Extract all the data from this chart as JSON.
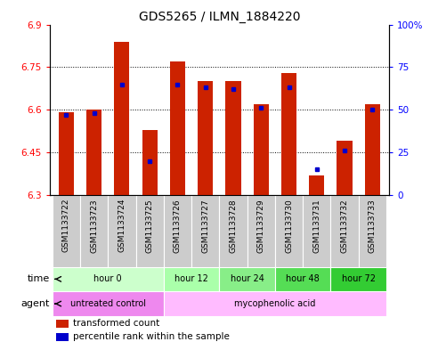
{
  "title": "GDS5265 / ILMN_1884220",
  "samples": [
    "GSM1133722",
    "GSM1133723",
    "GSM1133724",
    "GSM1133725",
    "GSM1133726",
    "GSM1133727",
    "GSM1133728",
    "GSM1133729",
    "GSM1133730",
    "GSM1133731",
    "GSM1133732",
    "GSM1133733"
  ],
  "transformed_count": [
    6.59,
    6.6,
    6.84,
    6.53,
    6.77,
    6.7,
    6.7,
    6.62,
    6.73,
    6.37,
    6.49,
    6.62
  ],
  "percentile_rank": [
    47,
    48,
    65,
    20,
    65,
    63,
    62,
    51,
    63,
    15,
    26,
    50
  ],
  "ylim": [
    6.3,
    6.9
  ],
  "yticks": [
    6.3,
    6.45,
    6.6,
    6.75,
    6.9
  ],
  "y2lim": [
    0,
    100
  ],
  "y2ticks": [
    0,
    25,
    50,
    75,
    100
  ],
  "bar_color": "#cc2200",
  "dot_color": "#0000cc",
  "bar_bottom": 6.3,
  "time_groups": [
    {
      "label": "hour 0",
      "start": 0,
      "end": 4,
      "color": "#ccffcc"
    },
    {
      "label": "hour 12",
      "start": 4,
      "end": 6,
      "color": "#aaffaa"
    },
    {
      "label": "hour 24",
      "start": 6,
      "end": 8,
      "color": "#88ee88"
    },
    {
      "label": "hour 48",
      "start": 8,
      "end": 10,
      "color": "#55dd55"
    },
    {
      "label": "hour 72",
      "start": 10,
      "end": 12,
      "color": "#33cc33"
    }
  ],
  "agent_groups": [
    {
      "label": "untreated control",
      "start": 0,
      "end": 4,
      "color": "#ee88ee"
    },
    {
      "label": "mycophenolic acid",
      "start": 4,
      "end": 12,
      "color": "#ffbbff"
    }
  ],
  "sample_bg_color": "#cccccc",
  "legend_red_label": "transformed count",
  "legend_blue_label": "percentile rank within the sample",
  "time_label": "time",
  "agent_label": "agent",
  "title_fontsize": 10,
  "tick_fontsize": 7.5,
  "sample_fontsize": 6.5,
  "row_fontsize": 8
}
